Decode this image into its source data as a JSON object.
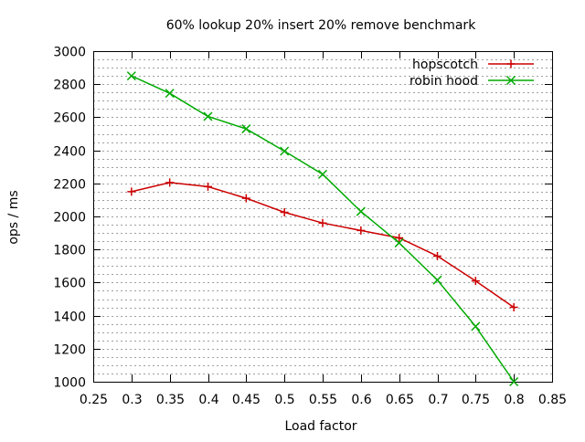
{
  "chart_data": {
    "type": "line",
    "title": "60% lookup 20% insert 20% remove benchmark",
    "xlabel": "Load factor",
    "ylabel": "ops / ms",
    "xlim": [
      0.25,
      0.85
    ],
    "ylim": [
      1000,
      3000
    ],
    "x_ticks": [
      "0.25",
      "0.3",
      "0.35",
      "0.4",
      "0.45",
      "0.5",
      "0.55",
      "0.6",
      "0.65",
      "0.7",
      "0.75",
      "0.8",
      "0.85"
    ],
    "y_ticks": [
      "1000",
      "1200",
      "1400",
      "1600",
      "1800",
      "2000",
      "2200",
      "2400",
      "2600",
      "2800",
      "3000"
    ],
    "grid": "horizontal dashed, minor every 50",
    "legend_position": "top-right",
    "series": [
      {
        "name": "hopscotch",
        "color": "#cc0000",
        "marker": "plus",
        "x": [
          0.3,
          0.35,
          0.4,
          0.45,
          0.5,
          0.55,
          0.6,
          0.65,
          0.7,
          0.75,
          0.8
        ],
        "y": [
          2150,
          2205,
          2180,
          2110,
          2025,
          1960,
          1915,
          1870,
          1760,
          1610,
          1450
        ]
      },
      {
        "name": "robin hood",
        "color": "#00aa00",
        "marker": "x",
        "x": [
          0.3,
          0.35,
          0.4,
          0.45,
          0.5,
          0.55,
          0.6,
          0.65,
          0.7,
          0.75,
          0.8
        ],
        "y": [
          2850,
          2745,
          2605,
          2530,
          2395,
          2255,
          2030,
          1840,
          1615,
          1335,
          1000
        ]
      }
    ]
  }
}
